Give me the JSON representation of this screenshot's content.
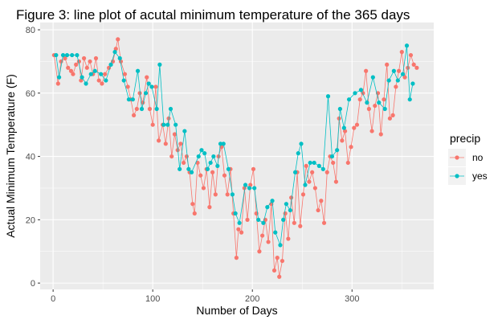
{
  "chart_data": {
    "type": "line",
    "title": "Figure 3: line plot of acutal minimum temperature of the 365 days",
    "x_label": "Number of Days",
    "y_label": "Actual Minimum Temperature (F)",
    "legend_title": "precip",
    "legend_position": "right",
    "grid": true,
    "xlim": [
      -13,
      382
    ],
    "xticks": [
      0,
      100,
      200,
      300
    ],
    "x_minor_ticks": [
      50,
      150,
      250,
      350
    ],
    "ylim": [
      -2,
      82.3
    ],
    "yticks": [
      0,
      20,
      40,
      60,
      80
    ],
    "y_minor_ticks": [
      10,
      30,
      50,
      70
    ],
    "series": [
      {
        "name": "no",
        "color": "#F8766D",
        "x": [
          1,
          5,
          8,
          12,
          15,
          18,
          20,
          23,
          26,
          28,
          31,
          34,
          37,
          40,
          43,
          46,
          49,
          52,
          56,
          60,
          63,
          65,
          68,
          72,
          75,
          78,
          81,
          84,
          87,
          90,
          94,
          97,
          100,
          103,
          106,
          110,
          113,
          116,
          119,
          122,
          125,
          128,
          131,
          134,
          137,
          140,
          142,
          145,
          148,
          151,
          154,
          157,
          160,
          163,
          166,
          169,
          172,
          175,
          178,
          181,
          184,
          186,
          189,
          192,
          195,
          198,
          201,
          204,
          207,
          210,
          213,
          216,
          219,
          222,
          225,
          227,
          230,
          233,
          236,
          239,
          242,
          245,
          248,
          251,
          254,
          257,
          260,
          263,
          266,
          269,
          272,
          275,
          278,
          281,
          284,
          287,
          290,
          293,
          296,
          299,
          302,
          305,
          308,
          311,
          314,
          317,
          320,
          323,
          326,
          329,
          332,
          335,
          338,
          341,
          344,
          347,
          350,
          353,
          356,
          359,
          362,
          365
        ],
        "values": [
          72,
          63,
          70,
          71,
          68,
          67,
          66,
          69,
          70,
          64,
          71,
          68,
          70,
          66,
          71,
          64,
          63,
          66,
          68,
          70,
          74,
          77,
          70,
          66,
          62,
          58,
          53,
          55,
          60,
          57,
          65,
          55,
          50,
          62,
          45,
          50,
          44,
          52,
          40,
          47,
          42,
          44,
          38,
          40,
          35,
          25,
          22,
          38,
          34,
          30,
          36,
          24,
          35,
          28,
          40,
          43,
          34,
          28,
          36,
          22,
          8,
          17,
          16,
          30,
          20,
          31,
          36,
          22,
          10,
          15,
          20,
          13,
          25,
          4,
          8,
          2,
          7,
          22,
          14,
          27,
          19,
          35,
          18,
          28,
          37,
          32,
          35,
          30,
          23,
          26,
          19,
          35,
          40,
          38,
          32,
          52,
          45,
          48,
          38,
          43,
          49,
          50,
          58,
          60,
          67,
          55,
          48,
          56,
          60,
          47,
          58,
          69,
          52,
          53,
          62,
          67,
          73,
          65,
          68,
          72,
          69,
          68
        ]
      },
      {
        "name": "yes",
        "color": "#00BFC4",
        "x": [
          3,
          6,
          10,
          14,
          19,
          24,
          29,
          33,
          38,
          42,
          48,
          53,
          58,
          62,
          67,
          71,
          76,
          80,
          85,
          89,
          93,
          96,
          99,
          104,
          107,
          111,
          115,
          118,
          123,
          127,
          132,
          136,
          139,
          146,
          149,
          152,
          155,
          158,
          161,
          165,
          168,
          171,
          176,
          180,
          183,
          187,
          193,
          197,
          202,
          206,
          211,
          215,
          220,
          223,
          228,
          231,
          234,
          238,
          243,
          246,
          249,
          253,
          258,
          262,
          267,
          271,
          276,
          280,
          285,
          288,
          292,
          297,
          303,
          309,
          315,
          321,
          327,
          333,
          337,
          342,
          346,
          351,
          355,
          358,
          361
        ],
        "values": [
          72,
          65,
          72,
          72,
          72,
          72,
          65,
          63,
          66,
          67,
          66,
          64,
          69,
          73,
          71,
          64,
          58,
          58,
          67,
          55,
          60,
          63,
          62,
          55,
          69,
          50,
          50,
          55,
          50,
          36,
          48,
          36,
          35,
          40,
          42,
          41,
          36,
          38,
          40,
          37,
          44,
          44,
          36,
          28,
          22,
          19,
          31,
          30,
          30,
          20,
          19,
          24,
          26,
          16,
          12,
          20,
          25,
          23,
          35,
          41,
          44,
          31,
          38,
          38,
          37,
          36,
          59,
          40,
          42,
          55,
          49,
          58,
          60,
          61,
          57,
          65,
          57,
          55,
          64,
          67,
          64,
          66,
          75,
          58,
          63
        ]
      }
    ]
  }
}
